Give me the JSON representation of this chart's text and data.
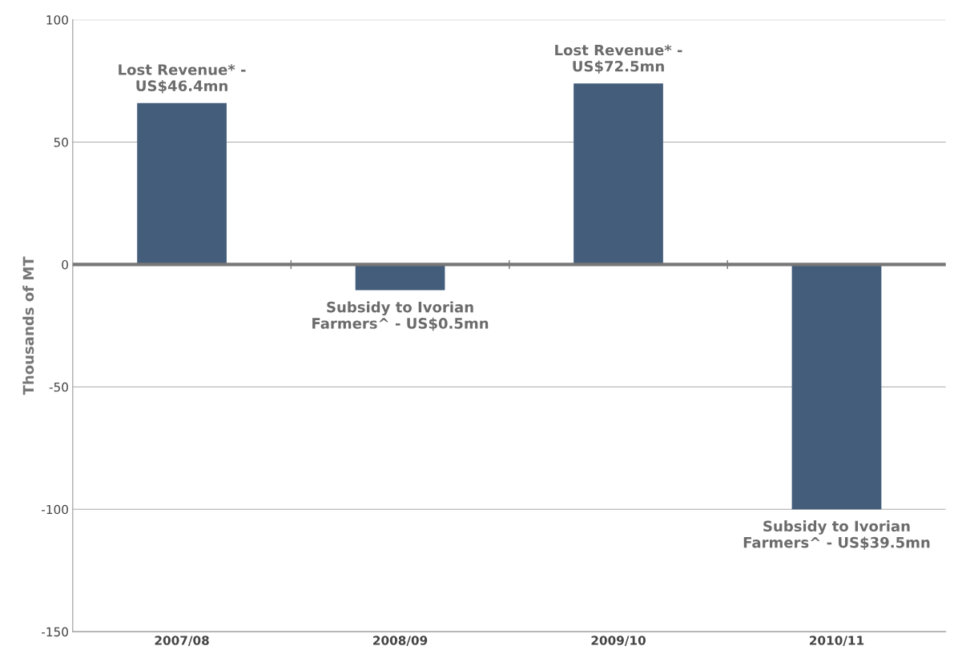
{
  "chart_data": {
    "type": "bar",
    "ylabel": "Thousands of MT",
    "categories": [
      "2007/08",
      "2008/09",
      "2009/10",
      "2010/11"
    ],
    "values": [
      66,
      -10.5,
      74,
      -100
    ],
    "color": "#435d7a",
    "ylim": [
      -150,
      100
    ],
    "yticks": [
      -150,
      -100,
      -50,
      0,
      50,
      100
    ],
    "grid": "y",
    "annotations": [
      {
        "text": "Lost Revenue* -\nUS$46.4mn",
        "x": "2007/08",
        "y": 66
      },
      {
        "text": "Subsidy to Ivorian\nFarmers^ - US$0.5mn",
        "x": "2008/09",
        "y": -10.5
      },
      {
        "text": "Lost Revenue* -\nUS$72.5mn",
        "x": "2009/10",
        "y": 74
      },
      {
        "text": "Subsidy to Ivorian\nFarmers^ - US$39.5mn",
        "x": "2010/11",
        "y": -100
      }
    ]
  }
}
